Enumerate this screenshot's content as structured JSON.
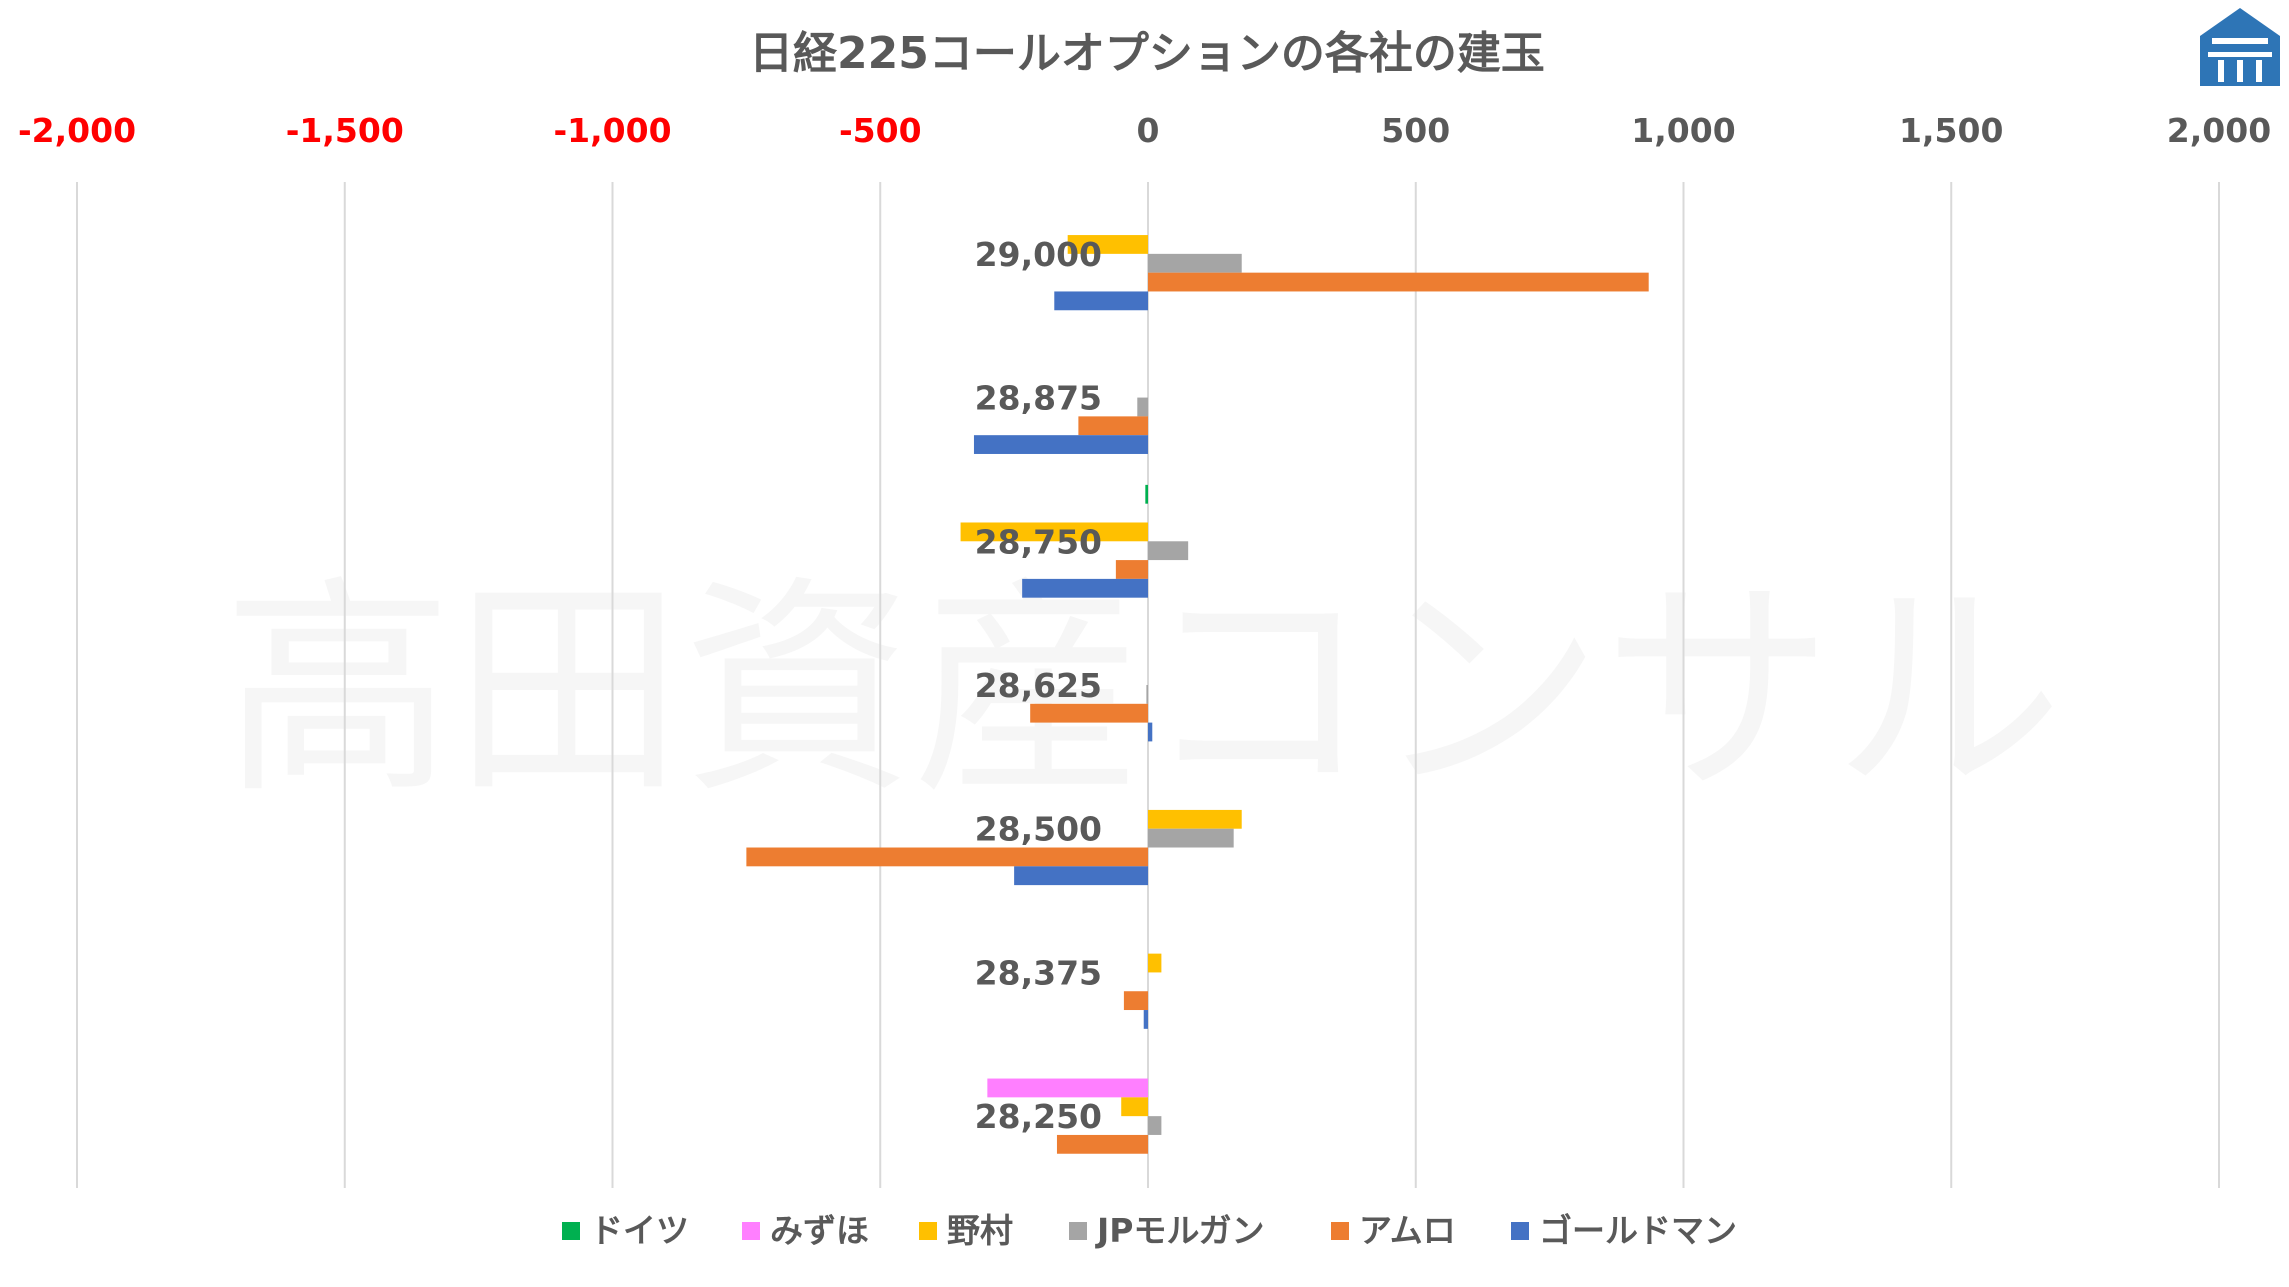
{
  "chart_data": {
    "type": "bar",
    "orientation": "horizontal",
    "title": "日経225コールオプションの各社の建玉",
    "xlim": [
      -2000,
      2000
    ],
    "xticks": [
      -2000,
      -1500,
      -1000,
      -500,
      0,
      500,
      1000,
      1500,
      2000
    ],
    "xtick_labels": [
      "-2,000",
      "-1,500",
      "-1,000",
      "-500",
      "0",
      "500",
      "1,000",
      "1,500",
      "2,000"
    ],
    "negative_tick_color": "#ff0000",
    "positive_tick_color": "#595959",
    "categories": [
      "29,000",
      "28,875",
      "28,750",
      "28,625",
      "28,500",
      "28,375",
      "28,250"
    ],
    "series": [
      {
        "name": "ドイツ",
        "color": "#00b050",
        "values": [
          0,
          0,
          -5,
          0,
          0,
          0,
          0
        ]
      },
      {
        "name": "みずほ",
        "color": "#ff7fff",
        "values": [
          0,
          0,
          0,
          0,
          0,
          0,
          -300
        ]
      },
      {
        "name": "野村",
        "color": "#ffc000",
        "values": [
          -150,
          0,
          -350,
          0,
          175,
          25,
          -50
        ]
      },
      {
        "name": "JPモルガン",
        "color": "#a5a5a5",
        "values": [
          175,
          -20,
          75,
          -3,
          160,
          0,
          25
        ]
      },
      {
        "name": "アムロ",
        "color": "#ed7d31",
        "values": [
          935,
          -130,
          -60,
          -220,
          -750,
          -45,
          -170
        ]
      },
      {
        "name": "ゴールドマン",
        "color": "#4472c4",
        "values": [
          -175,
          -325,
          -235,
          8,
          -250,
          -8,
          0
        ]
      }
    ],
    "legend_position": "bottom",
    "grid": true,
    "watermark": "高田資産コンサル"
  },
  "colors": {
    "grid": "#d9d9d9",
    "logo": "#2e75b6"
  },
  "logo": {
    "icon": "building-logo-icon"
  }
}
